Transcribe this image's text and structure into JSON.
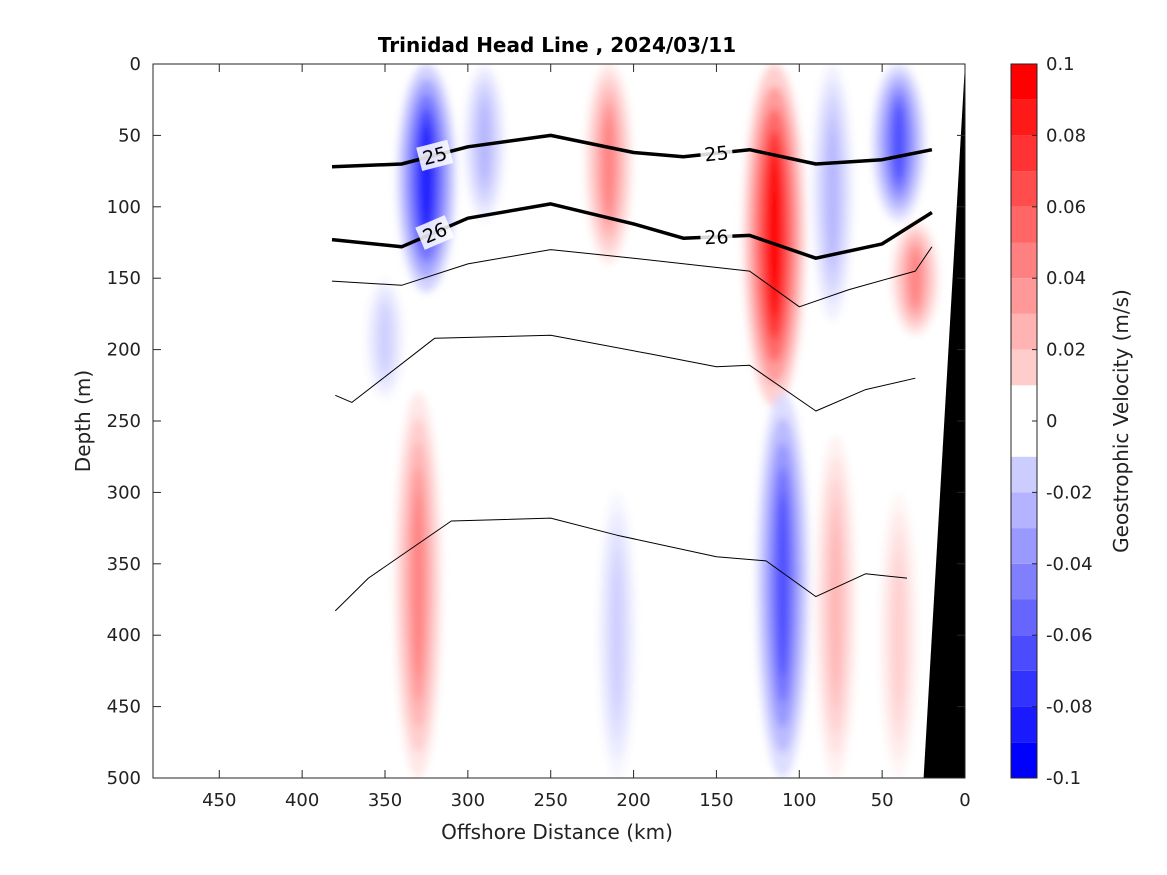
{
  "chart_data": {
    "type": "heatmap",
    "subtype": "filled contour section with density contours",
    "title": "Trinidad Head Line , 2024/03/11",
    "xlabel": "Offshore Distance (km)",
    "ylabel": "Depth (m)",
    "colorbar_label": "Geostrophic Velocity (m/s)",
    "x_direction": "reversed",
    "y_direction": "reversed (depth increasing downward)",
    "xlim": [
      0,
      490
    ],
    "ylim": [
      0,
      500
    ],
    "xticks": [
      450,
      400,
      350,
      300,
      250,
      200,
      150,
      100,
      50,
      0
    ],
    "yticks": [
      0,
      50,
      100,
      150,
      200,
      250,
      300,
      350,
      400,
      450,
      500
    ],
    "colorbar": {
      "range": [
        -0.1,
        0.1
      ],
      "ticks": [
        0.1,
        0.08,
        0.06,
        0.04,
        0.02,
        0,
        -0.02,
        -0.04,
        -0.06,
        -0.08,
        -0.1
      ],
      "levels": [
        -0.1,
        -0.09,
        -0.08,
        -0.07,
        -0.06,
        -0.05,
        -0.04,
        -0.03,
        -0.02,
        -0.01,
        0.01,
        0.02,
        0.03,
        0.04,
        0.05,
        0.06,
        0.07,
        0.08,
        0.09,
        0.1
      ],
      "colormap": "blue-white-red"
    },
    "data_extent_km": [
      20,
      382
    ],
    "velocity_features": [
      {
        "x": 325,
        "z_top": 0,
        "z_bottom": 160,
        "peak": -0.09
      },
      {
        "x": 290,
        "z_top": 0,
        "z_bottom": 110,
        "peak": -0.03
      },
      {
        "x": 350,
        "z_top": 150,
        "z_bottom": 235,
        "peak": -0.02
      },
      {
        "x": 215,
        "z_top": 0,
        "z_bottom": 140,
        "peak": 0.05
      },
      {
        "x": 115,
        "z_top": 0,
        "z_bottom": 240,
        "peak": 0.1
      },
      {
        "x": 80,
        "z_top": 0,
        "z_bottom": 180,
        "peak": -0.03
      },
      {
        "x": 40,
        "z_top": 0,
        "z_bottom": 110,
        "peak": -0.07
      },
      {
        "x": 30,
        "z_top": 110,
        "z_bottom": 190,
        "peak": 0.05
      },
      {
        "x": 330,
        "z_top": 230,
        "z_bottom": 500,
        "peak": 0.05
      },
      {
        "x": 210,
        "z_top": 300,
        "z_bottom": 500,
        "peak": -0.02
      },
      {
        "x": 110,
        "z_top": 230,
        "z_bottom": 500,
        "peak": -0.07
      },
      {
        "x": 78,
        "z_top": 260,
        "z_bottom": 500,
        "peak": 0.03
      },
      {
        "x": 40,
        "z_top": 300,
        "z_bottom": 500,
        "peak": 0.02
      }
    ],
    "density_contours": [
      {
        "name": "25",
        "bold": true,
        "points": [
          [
            382,
            72
          ],
          [
            340,
            70
          ],
          [
            300,
            58
          ],
          [
            250,
            50
          ],
          [
            200,
            62
          ],
          [
            170,
            65
          ],
          [
            130,
            60
          ],
          [
            90,
            70
          ],
          [
            50,
            67
          ],
          [
            20,
            60
          ]
        ]
      },
      {
        "name": "26",
        "bold": true,
        "points": [
          [
            382,
            123
          ],
          [
            340,
            128
          ],
          [
            300,
            108
          ],
          [
            250,
            98
          ],
          [
            200,
            112
          ],
          [
            170,
            122
          ],
          [
            130,
            120
          ],
          [
            90,
            136
          ],
          [
            50,
            126
          ],
          [
            20,
            104
          ]
        ]
      },
      {
        "name": "",
        "bold": false,
        "points": [
          [
            382,
            152
          ],
          [
            340,
            155
          ],
          [
            300,
            140
          ],
          [
            250,
            130
          ],
          [
            200,
            136
          ],
          [
            130,
            145
          ],
          [
            100,
            170
          ],
          [
            70,
            158
          ],
          [
            30,
            145
          ],
          [
            20,
            128
          ]
        ]
      },
      {
        "name": "",
        "bold": false,
        "points": [
          [
            380,
            232
          ],
          [
            370,
            237
          ],
          [
            320,
            192
          ],
          [
            250,
            190
          ],
          [
            190,
            203
          ],
          [
            150,
            212
          ],
          [
            130,
            211
          ],
          [
            90,
            243
          ],
          [
            60,
            228
          ],
          [
            30,
            220
          ]
        ]
      },
      {
        "name": "",
        "bold": false,
        "points": [
          [
            380,
            383
          ],
          [
            360,
            360
          ],
          [
            310,
            320
          ],
          [
            250,
            318
          ],
          [
            210,
            330
          ],
          [
            150,
            345
          ],
          [
            120,
            348
          ],
          [
            90,
            373
          ],
          [
            60,
            357
          ],
          [
            35,
            360
          ]
        ]
      }
    ],
    "bathymetry": {
      "label": "seafloor",
      "points": [
        [
          25,
          500
        ],
        [
          0,
          0
        ],
        [
          0,
          500
        ]
      ]
    }
  }
}
